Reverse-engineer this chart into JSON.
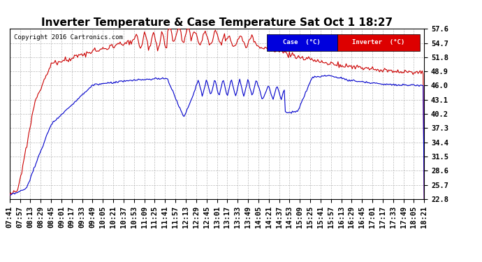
{
  "title": "Inverter Temperature & Case Temperature Sat Oct 1 18:27",
  "copyright": "Copyright 2016 Cartronics.com",
  "y_ticks": [
    22.8,
    25.7,
    28.6,
    31.5,
    34.4,
    37.3,
    40.2,
    43.1,
    46.0,
    48.9,
    51.8,
    54.7,
    57.6
  ],
  "ylim": [
    22.8,
    57.6
  ],
  "x_labels": [
    "07:41",
    "07:57",
    "08:13",
    "08:29",
    "08:45",
    "09:01",
    "09:17",
    "09:33",
    "09:49",
    "10:05",
    "10:21",
    "10:37",
    "10:53",
    "11:09",
    "11:25",
    "11:41",
    "11:57",
    "12:13",
    "12:29",
    "12:45",
    "13:01",
    "13:17",
    "13:33",
    "13:49",
    "14:05",
    "14:21",
    "14:37",
    "14:53",
    "15:09",
    "15:25",
    "15:41",
    "15:57",
    "16:13",
    "16:29",
    "16:45",
    "17:01",
    "17:17",
    "17:33",
    "17:49",
    "18:05",
    "18:21"
  ],
  "legend_case_color": "#0000dd",
  "legend_inverter_color": "#dd0000",
  "background_color": "#ffffff",
  "grid_color": "#aaaaaa",
  "title_fontsize": 11,
  "tick_fontsize": 7.5,
  "line_blue_color": "#0000cc",
  "line_red_color": "#cc0000"
}
